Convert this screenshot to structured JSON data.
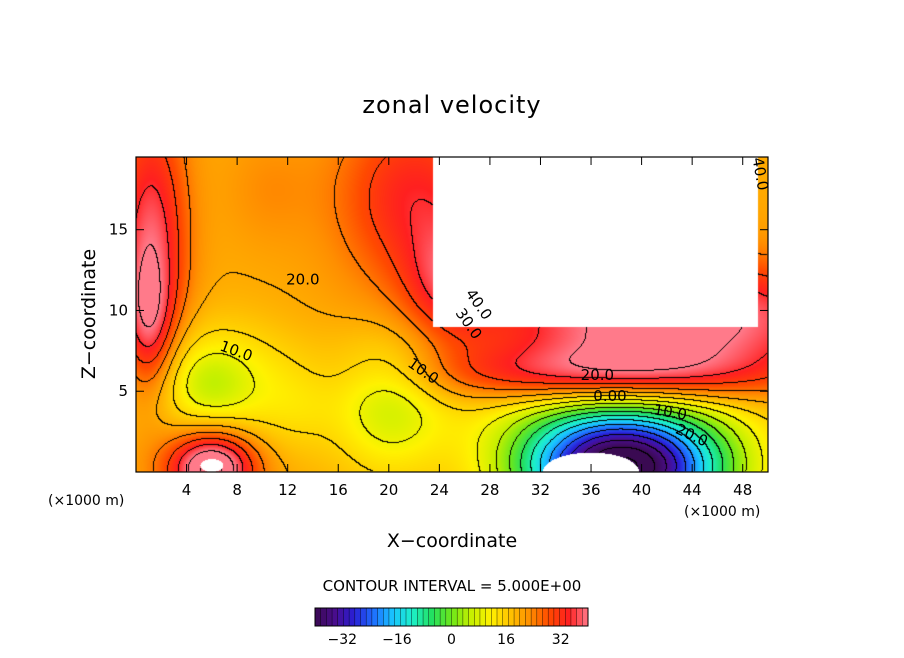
{
  "chart_data": {
    "type": "heatmap",
    "title": "zonal velocity",
    "xlabel": "X−coordinate",
    "ylabel": "Z−coordinate",
    "x_units": "(×1000 m)",
    "y_units": "(×1000 m)",
    "xlim": [
      0,
      50
    ],
    "ylim": [
      0,
      19.5
    ],
    "x_ticks": [
      4,
      8,
      12,
      16,
      20,
      24,
      28,
      32,
      36,
      40,
      44,
      48
    ],
    "y_ticks": [
      5,
      10,
      15
    ],
    "contour_interval_text": "CONTOUR INTERVAL = 5.000E+00",
    "contour_interval": 5.0,
    "colorbar": {
      "min": -40,
      "max": 40,
      "tick_values": [
        -32,
        -16,
        0,
        16,
        32
      ],
      "tick_labels": [
        "−32",
        "−16",
        "0",
        "16",
        "32"
      ],
      "colors": [
        "#3a0a52",
        "#4a0d8c",
        "#2a1fd6",
        "#1f6fff",
        "#19c6ff",
        "#1df0c9",
        "#23e060",
        "#6ee81a",
        "#c6f000",
        "#fff200",
        "#ffc400",
        "#ff9000",
        "#ff4a00",
        "#ff2020",
        "#ff7a8a"
      ]
    },
    "fields": [
      {
        "kind": "region",
        "name": "base",
        "value": 20
      },
      {
        "kind": "blob",
        "name": "left-upper-wall",
        "cx": 1.2,
        "cy": 14,
        "rx": 2.8,
        "ry": 8.5,
        "amp": 18
      },
      {
        "kind": "blob",
        "name": "left-wall-mid",
        "cx": 1.0,
        "cy": 9,
        "rx": 1.8,
        "ry": 4,
        "amp": 10
      },
      {
        "kind": "blob",
        "name": "upper-mid-band",
        "cx": 22,
        "cy": 17,
        "rx": 6,
        "ry": 5.5,
        "amp": 14
      },
      {
        "kind": "blob",
        "name": "upper-ridge",
        "cx": 25,
        "cy": 12,
        "rx": 3.5,
        "ry": 3.5,
        "amp": 12
      },
      {
        "kind": "blob",
        "name": "upper-tongue",
        "cx": 10.5,
        "cy": 17.5,
        "rx": 3.5,
        "ry": 3.5,
        "amp": 3
      },
      {
        "kind": "blob",
        "name": "left-green-basin",
        "cx": 6,
        "cy": 5.5,
        "rx": 6.5,
        "ry": 3.6,
        "amp": -12
      },
      {
        "kind": "blob",
        "name": "left-green-core",
        "cx": 6,
        "cy": 5.5,
        "rx": 2.5,
        "ry": 1.8,
        "amp": -3
      },
      {
        "kind": "blob",
        "name": "mid-green-basin",
        "cx": 20,
        "cy": 4.2,
        "rx": 4.5,
        "ry": 4.5,
        "amp": -12
      },
      {
        "kind": "blob",
        "name": "bottom-left-hot",
        "cx": 6,
        "cy": 0.3,
        "rx": 3.4,
        "ry": 2.2,
        "amp": 28
      },
      {
        "kind": "blob",
        "name": "mid-yellow-pocket",
        "cx": 13,
        "cy": 4,
        "rx": 3,
        "ry": 3,
        "amp": -3
      },
      {
        "kind": "blob",
        "name": "right-lower-band",
        "cx": 37,
        "cy": 6,
        "rx": 13,
        "ry": 1.8,
        "amp": 16
      },
      {
        "kind": "blob",
        "name": "right-jet-top",
        "cx": 42,
        "cy": 9.5,
        "rx": 14,
        "ry": 3.5,
        "amp": 24
      },
      {
        "kind": "blob",
        "name": "right-green-band",
        "cx": 37,
        "cy": 3.5,
        "rx": 12,
        "ry": 2.5,
        "amp": -8
      },
      {
        "kind": "blob",
        "name": "negative-core",
        "cx": 38.5,
        "cy": 0.2,
        "rx": 8,
        "ry": 3.4,
        "amp": -65
      },
      {
        "kind": "cutout",
        "name": "upper-right-void",
        "xlim": [
          23.5,
          49.2
        ],
        "ylim": [
          9.0,
          19.5
        ]
      },
      {
        "kind": "cutout",
        "name": "bottom-void",
        "cx": 36,
        "cy": 0,
        "rx": 3.8,
        "ry": 1.2
      },
      {
        "kind": "cutout",
        "name": "small-void",
        "cx": 6,
        "cy": 0.4,
        "rx": 0.9,
        "ry": 0.4
      }
    ],
    "contour_labels": [
      {
        "text": "40.0",
        "x": 49,
        "y": 18.4,
        "rotate": 80
      },
      {
        "text": "20.0",
        "x": 13.2,
        "y": 11.6,
        "rotate": 0
      },
      {
        "text": "40.0",
        "x": 26.8,
        "y": 10.2,
        "rotate": 55
      },
      {
        "text": "30.0",
        "x": 26.0,
        "y": 9.0,
        "rotate": 55
      },
      {
        "text": "10.0",
        "x": 7.8,
        "y": 7.2,
        "rotate": 20
      },
      {
        "text": "10.0",
        "x": 22.5,
        "y": 6.0,
        "rotate": 35
      },
      {
        "text": "20.0",
        "x": 36.5,
        "y": 5.7,
        "rotate": 0
      },
      {
        "text": "0.00",
        "x": 37.5,
        "y": 4.4,
        "rotate": 0
      },
      {
        "text": "10.0",
        "x": 42.2,
        "y": 3.4,
        "rotate": 10
      },
      {
        "text": "20.0",
        "x": 43.8,
        "y": 2.0,
        "rotate": 25
      }
    ]
  }
}
